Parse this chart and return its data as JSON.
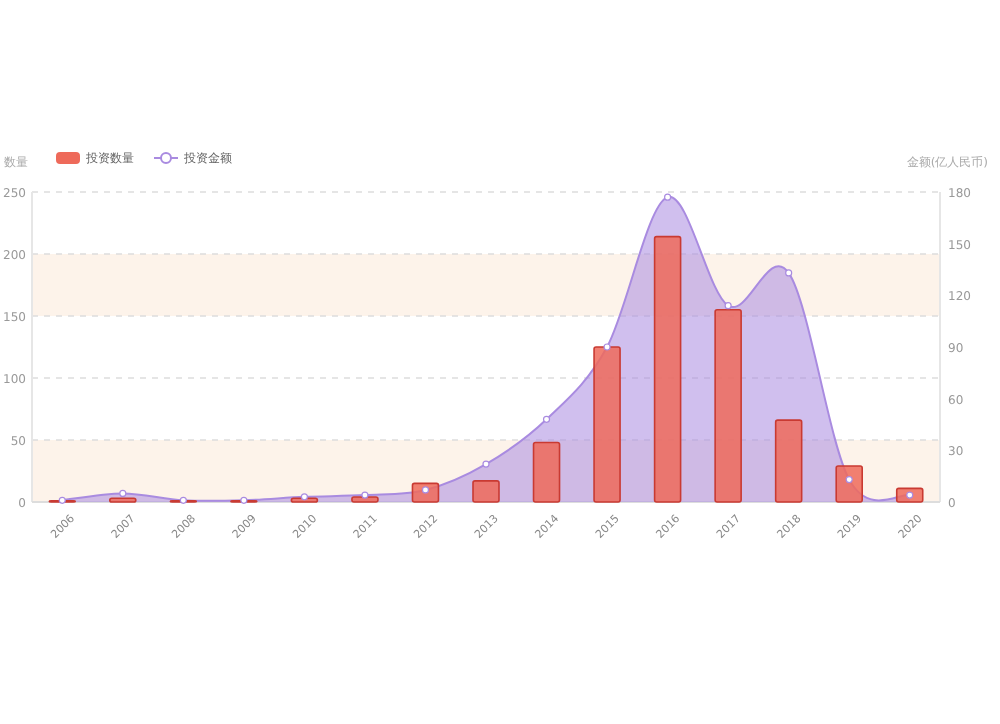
{
  "chart_data": {
    "type": "bar",
    "ylabel": "数量",
    "y2label": "金额(亿人民币)",
    "categories": [
      "2006",
      "2007",
      "2008",
      "2009",
      "2010",
      "2011",
      "2012",
      "2013",
      "2014",
      "2015",
      "2016",
      "2017",
      "2018",
      "2019",
      "2020"
    ],
    "series": [
      {
        "name": "投资数量",
        "color": "#ee6a5a",
        "values": [
          1,
          3,
          1,
          1,
          3,
          4,
          15,
          17,
          48,
          125,
          214,
          155,
          66,
          29,
          11
        ]
      },
      {
        "name": "投资金额",
        "type": "area",
        "axis": "y2",
        "color": "#a98be0",
        "marker": "circle",
        "values": [
          1,
          5,
          1,
          1,
          3,
          4,
          7,
          22,
          48,
          90,
          177,
          114,
          133,
          13,
          4
        ]
      }
    ],
    "ylim": [
      0,
      250
    ],
    "yticks": [
      0,
      50,
      100,
      150,
      200,
      250
    ],
    "y2lim": [
      0,
      180
    ],
    "y2ticks": [
      0,
      30,
      60,
      90,
      120,
      150,
      180
    ],
    "grid": "y",
    "legend": "top left",
    "bands": [
      {
        "axis": "y",
        "from": 0,
        "to": 50,
        "color": "#fdf3ea"
      },
      {
        "axis": "y",
        "from": 150,
        "to": 200,
        "color": "#fdf3ea"
      }
    ]
  }
}
